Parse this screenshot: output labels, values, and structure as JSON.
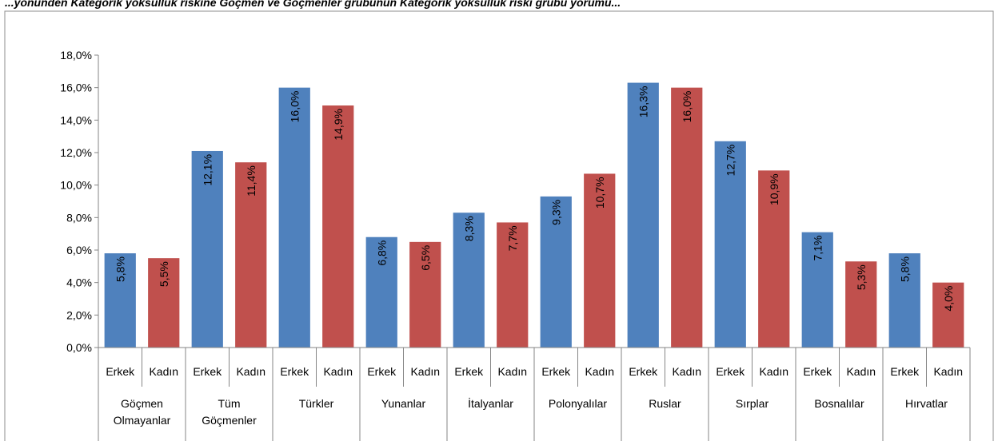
{
  "chart_data": {
    "type": "bar",
    "title_fragment": "...yönünden Kategorik yoksulluk riskine Göçmen ve Göçmenler grubunun Kategorik yoksulluk riski grubu yorumu...",
    "groups": [
      "Göçmen Olmayanlar",
      "Tüm Göçmenler",
      "Türkler",
      "Yunanlar",
      "İtalyanlar",
      "Polonyalılar",
      "Ruslar",
      "Sırplar",
      "Bosnalılar",
      "Hırvatlar"
    ],
    "group_label_lines": [
      [
        "Göçmen",
        "Olmayanlar"
      ],
      [
        "Tüm",
        "Göçmenler"
      ],
      [
        "Türkler"
      ],
      [
        "Yunanlar"
      ],
      [
        "İtalyanlar"
      ],
      [
        "Polonyalılar"
      ],
      [
        "Ruslar"
      ],
      [
        "Sırplar"
      ],
      [
        "Bosnalılar"
      ],
      [
        "Hırvatlar"
      ]
    ],
    "subcategories": [
      "Erkek",
      "Kadın"
    ],
    "series": [
      {
        "color": "#4f81bd",
        "values": [
          5.8,
          12.1,
          16.0,
          6.8,
          8.3,
          9.3,
          16.3,
          12.7,
          7.1,
          5.8
        ],
        "labels": [
          "5,8%",
          "12,1%",
          "16,0%",
          "6,8%",
          "8,3%",
          "9,3%",
          "16,3%",
          "12,7%",
          "7,1%",
          "5,8%"
        ]
      },
      {
        "color": "#c0504d",
        "values": [
          5.5,
          11.4,
          14.9,
          6.5,
          7.7,
          10.7,
          16.0,
          10.9,
          5.3,
          4.0
        ],
        "labels": [
          "5,5%",
          "11,4%",
          "14,9%",
          "6,5%",
          "7,7%",
          "10,7%",
          "16,0%",
          "10,9%",
          "5,3%",
          "4,0%"
        ]
      }
    ],
    "ylim": [
      0,
      18
    ],
    "yticks": [
      0,
      2,
      4,
      6,
      8,
      10,
      12,
      14,
      16,
      18
    ],
    "ytick_labels": [
      "0,0%",
      "2,0%",
      "4,0%",
      "6,0%",
      "8,0%",
      "10,0%",
      "12,0%",
      "14,0%",
      "16,0%",
      "18,0%"
    ],
    "grid": false,
    "legend": "none",
    "data_label_orientation": "vertical"
  }
}
